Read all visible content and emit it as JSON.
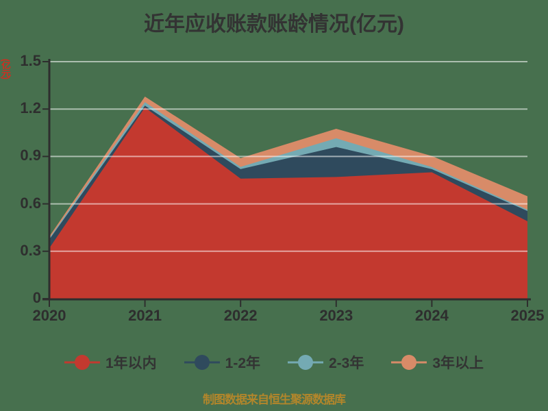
{
  "title": "近年应收账款账龄情况(亿元)",
  "y_axis_unit": "(亿元)",
  "footer_note": "制图数据来自恒生聚源数据库",
  "colors": {
    "background": "#47704E",
    "axis": "#2E2E2E",
    "grid": "rgba(255,255,255,0.55)",
    "title_text": "#333333",
    "tick_text": "#2E2E2E",
    "footer_text": "#B2862B",
    "y_unit_text": "#D42B1E"
  },
  "chart_data": {
    "type": "area",
    "stacked": true,
    "title": "近年应收账款账龄情况(亿元)",
    "xlabel": "",
    "ylabel": "(亿元)",
    "x": [
      2020,
      2021,
      2022,
      2023,
      2024,
      2025
    ],
    "x_tick_labels": [
      "2020",
      "2021",
      "2022",
      "2023",
      "2024",
      "2025"
    ],
    "y_ticks": [
      0,
      0.3,
      0.6,
      0.9,
      1.2,
      1.5
    ],
    "y_tick_labels": [
      "0",
      "0.3",
      "0.6",
      "0.9",
      "1.2",
      "1.5"
    ],
    "ylim": [
      0,
      1.5
    ],
    "grid": true,
    "legend_position": "bottom",
    "series": [
      {
        "name": "1年以内",
        "color": "#C3392F",
        "values": [
          0.32,
          1.21,
          0.76,
          0.77,
          0.8,
          0.49
        ]
      },
      {
        "name": "1-2年",
        "color": "#2F4A5D",
        "values": [
          0.055,
          0.012,
          0.06,
          0.19,
          0.02,
          0.065
        ]
      },
      {
        "name": "2-3年",
        "color": "#74AAB3",
        "values": [
          0.008,
          0.022,
          0.014,
          0.055,
          0.013,
          0.008
        ]
      },
      {
        "name": "3年以上",
        "color": "#D88B68",
        "values": [
          0.01,
          0.035,
          0.055,
          0.06,
          0.07,
          0.085
        ]
      }
    ],
    "stacked_totals": [
      0.393,
      1.279,
      0.889,
      1.075,
      0.903,
      0.648
    ]
  }
}
